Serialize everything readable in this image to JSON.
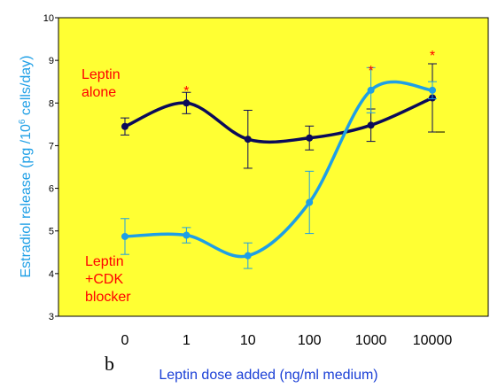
{
  "chart_data": {
    "type": "line",
    "panel_label": "b",
    "xlabel": "Leptin dose added (ng/ml medium)",
    "ylabel_main": "Estradiol release (pg /10",
    "ylabel_sup": "6",
    "ylabel_end": " cells/day)",
    "categories": [
      "0",
      "1",
      "10",
      "100",
      "1000",
      "10000"
    ],
    "y_ticks": [
      "3",
      "4",
      "5",
      "6",
      "7",
      "8",
      "9",
      "10"
    ],
    "ylim": [
      3,
      10
    ],
    "grid": false,
    "series": [
      {
        "label_lines": [
          "Leptin",
          "alone"
        ],
        "values": [
          7.45,
          8.0,
          7.15,
          7.18,
          7.48,
          8.12
        ],
        "error": [
          0.2,
          0.25,
          0.68,
          0.28,
          0.38,
          0.8
        ],
        "color": "#0a0a5a"
      },
      {
        "label_lines": [
          "Leptin",
          "+CDK",
          "blocker"
        ],
        "values": [
          4.87,
          4.9,
          4.42,
          5.67,
          8.3,
          8.3
        ],
        "error": [
          0.42,
          0.18,
          0.3,
          0.73,
          0.53,
          0.2
        ],
        "color": "#1e9fe6"
      }
    ],
    "significance_marker": "*",
    "significant_at": [
      "1",
      "1000",
      "10000"
    ],
    "colors": {
      "plot_background": "#ffff33",
      "label_text": "#ff0000",
      "axis_title": "#1a3fd6",
      "y_axis_title": "#1e9fe6"
    }
  }
}
